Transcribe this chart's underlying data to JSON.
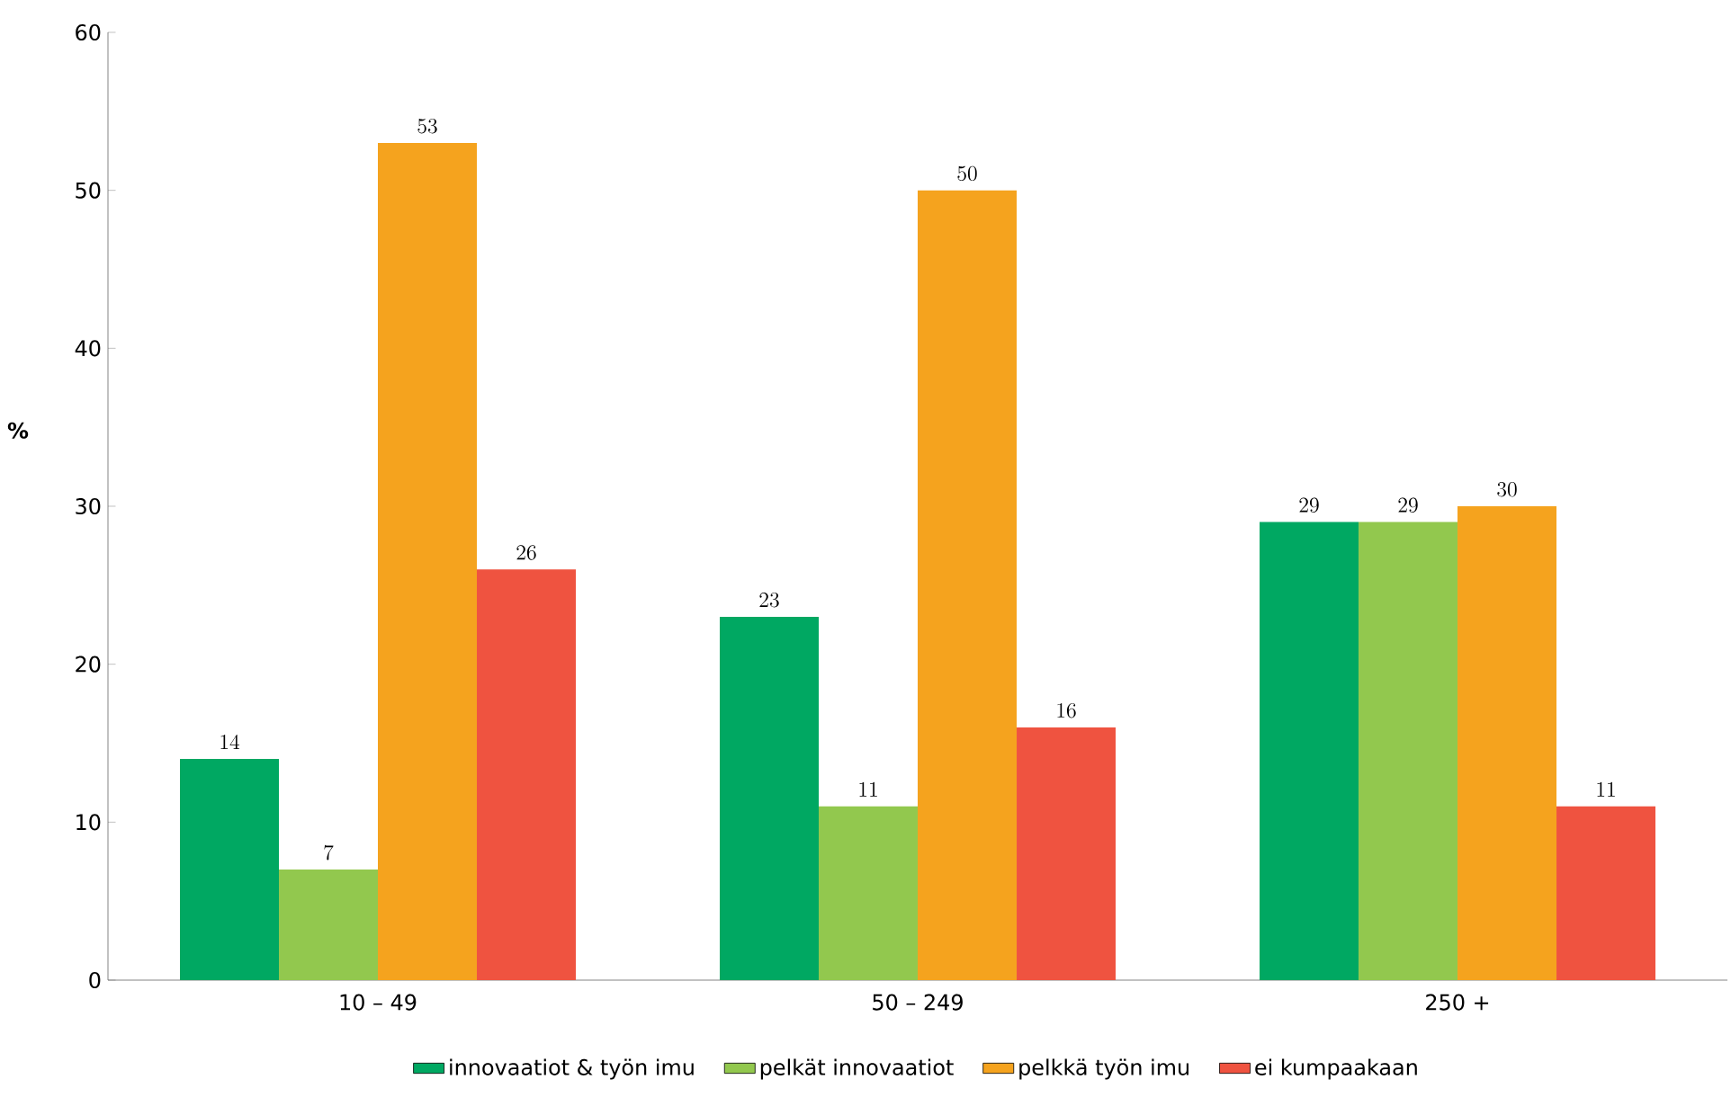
{
  "chart_data": {
    "type": "bar",
    "ylabel": "%",
    "categories": [
      "10 – 49",
      "50 – 249",
      "250 +"
    ],
    "series": [
      {
        "name": "innovaatiot & työn imu",
        "color": "#00a862",
        "values": [
          14,
          23,
          29
        ]
      },
      {
        "name": "pelkät innovaatiot",
        "color": "#92c84e",
        "values": [
          7,
          11,
          29
        ]
      },
      {
        "name": "pelkkä työn imu",
        "color": "#f5a31e",
        "values": [
          53,
          50,
          30
        ]
      },
      {
        "name": "ei kumpaakaan",
        "color": "#ef5340",
        "values": [
          26,
          16,
          11
        ]
      }
    ],
    "ylim": [
      0,
      60
    ],
    "yticks": [
      0,
      10,
      20,
      30,
      40,
      50,
      60
    ],
    "data_labels": true,
    "legend": "bottom",
    "grid": false
  }
}
